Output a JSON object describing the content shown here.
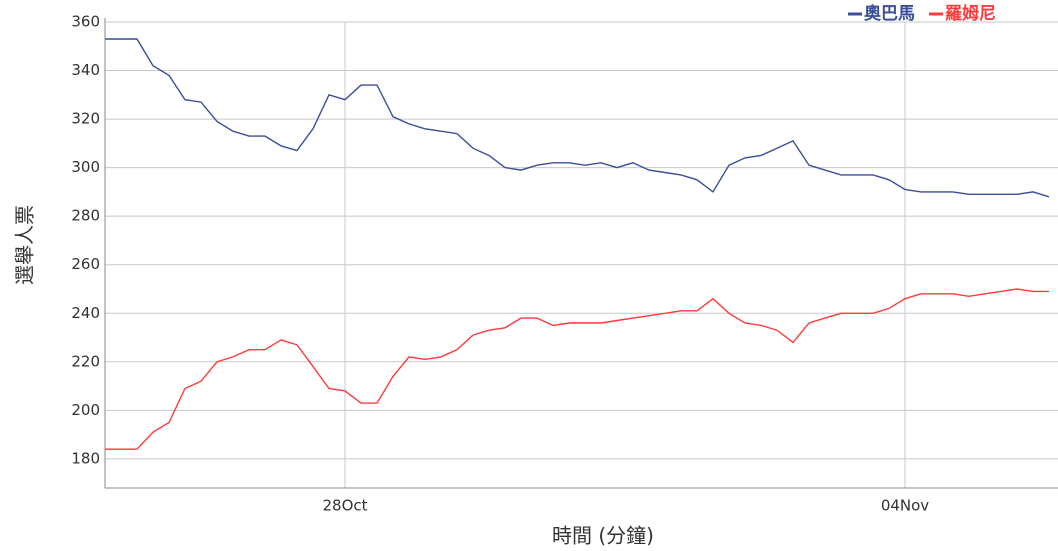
{
  "chart_data": {
    "type": "line",
    "x_label": "時間 (分鐘)",
    "y_label": "選舉人票",
    "x": [
      0,
      0.2,
      0.4,
      0.6,
      0.8,
      1,
      1.2,
      1.4,
      1.6,
      1.8,
      2,
      2.2,
      2.4,
      2.6,
      2.8,
      3,
      3.2,
      3.4,
      3.6,
      3.8,
      4,
      4.2,
      4.4,
      4.6,
      4.8,
      5,
      5.2,
      5.4,
      5.6,
      5.8,
      6,
      6.2,
      6.4,
      6.6,
      6.8,
      7,
      7.2,
      7.4,
      7.6,
      7.8,
      8,
      8.2,
      8.4,
      8.6,
      8.8,
      9,
      9.2,
      9.4,
      9.6,
      9.8,
      10,
      10.2,
      10.4,
      10.6,
      10.8,
      11,
      11.2,
      11.4,
      11.6,
      11.8
    ],
    "series": [
      {
        "name": "奧巴馬",
        "color": "#3a4f9a",
        "values": [
          353,
          353,
          353,
          342,
          338,
          328,
          327,
          319,
          315,
          313,
          313,
          309,
          307,
          316,
          330,
          328,
          334,
          334,
          321,
          318,
          316,
          315,
          314,
          308,
          305,
          300,
          299,
          301,
          302,
          302,
          301,
          302,
          300,
          302,
          299,
          298,
          297,
          295,
          290,
          301,
          304,
          305,
          308,
          311,
          301,
          299,
          297,
          297,
          297,
          295,
          291,
          290,
          290,
          290,
          289,
          289,
          289,
          289,
          290,
          288
        ]
      },
      {
        "name": "羅姆尼",
        "color": "#ff3b3b",
        "values": [
          184,
          184,
          184,
          191,
          195,
          209,
          212,
          220,
          222,
          225,
          225,
          229,
          227,
          218,
          209,
          208,
          203,
          203,
          214,
          222,
          221,
          222,
          225,
          231,
          233,
          234,
          238,
          238,
          235,
          236,
          236,
          236,
          237,
          238,
          239,
          240,
          241,
          241,
          246,
          240,
          236,
          235,
          233,
          228,
          236,
          238,
          240,
          240,
          240,
          242,
          246,
          248,
          248,
          248,
          247,
          248,
          249,
          250,
          249,
          249
        ]
      }
    ],
    "xlim": [
      0,
      11.9
    ],
    "xticks": [
      {
        "value": 3,
        "label": "28Oct"
      },
      {
        "value": 10,
        "label": "04Nov"
      }
    ],
    "ylim": [
      168,
      360
    ],
    "yticks": [
      180,
      200,
      220,
      240,
      260,
      280,
      300,
      320,
      340,
      360
    ],
    "grid": true,
    "legend": "top-right"
  }
}
